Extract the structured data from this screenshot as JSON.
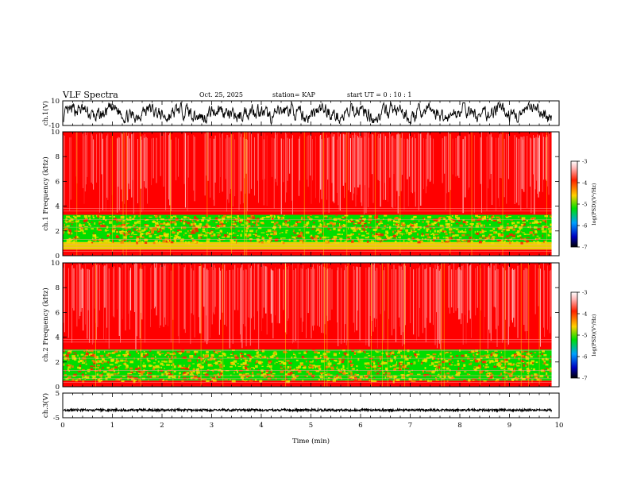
{
  "header": {
    "title": "VLF Spectra",
    "date": "Oct. 25, 2025",
    "station": "station= KAP",
    "start_ut": "start  UT =   0 : 10 : 1"
  },
  "colors": {
    "spec_low": "#001080",
    "spec_mid": "#00dd00",
    "spec_high": "#ff0000",
    "waveform": "#000000"
  },
  "chart_data": [
    {
      "type": "line",
      "name": "ch1-waveform",
      "ylabel": "ch.1(V)",
      "ylim": [
        -10,
        10
      ],
      "yticks": [
        "10",
        "-10"
      ],
      "xlim": [
        0,
        10
      ],
      "data_end_min": 9.85,
      "description": "dense noisy waveform, amplitude mostly between -8 and 8 V"
    },
    {
      "type": "heatmap",
      "name": "ch1-spectrogram",
      "ylabel": "ch.1 Frequency (kHz)",
      "ylim": [
        0,
        10
      ],
      "yticks": [
        "0",
        "2",
        "4",
        "6",
        "8",
        "10"
      ],
      "xlim": [
        0,
        10
      ],
      "data_end_min": 9.85,
      "bands": [
        {
          "from_khz": 0.0,
          "to_khz": 0.5,
          "level": "high"
        },
        {
          "from_khz": 0.5,
          "to_khz": 1.1,
          "level": "mixed"
        },
        {
          "from_khz": 1.1,
          "to_khz": 3.3,
          "level": "mid"
        },
        {
          "from_khz": 3.3,
          "to_khz": 10.0,
          "level": "high"
        }
      ],
      "colorbar": {
        "label": "log(PSD)(V²/Hz)",
        "range": [
          -7,
          -3
        ],
        "ticks": [
          "-3",
          "-4",
          "-5",
          "-6",
          "-7"
        ]
      }
    },
    {
      "type": "heatmap",
      "name": "ch2-spectrogram",
      "ylabel": "ch.2 Frequency (kHz)",
      "ylim": [
        0,
        10
      ],
      "yticks": [
        "0",
        "2",
        "4",
        "6",
        "8",
        "10"
      ],
      "xlim": [
        0,
        10
      ],
      "data_end_min": 9.85,
      "bands": [
        {
          "from_khz": 0.0,
          "to_khz": 0.5,
          "level": "high"
        },
        {
          "from_khz": 0.5,
          "to_khz": 3.0,
          "level": "mid"
        },
        {
          "from_khz": 3.0,
          "to_khz": 10.0,
          "level": "high"
        }
      ],
      "colorbar": {
        "label": "log(PSD)(V²/Hz)",
        "range": [
          -7,
          -3
        ],
        "ticks": [
          "-3",
          "-4",
          "-5",
          "-6",
          "-7"
        ]
      }
    },
    {
      "type": "line",
      "name": "ch3-waveform",
      "ylabel": "ch.3(V)",
      "ylim": [
        -5,
        5
      ],
      "yticks": [
        "5",
        "-5"
      ],
      "xlim": [
        0,
        10
      ],
      "data_end_min": 9.85,
      "level_v": -1.9,
      "description": "nearly constant trace near -2 V with small jitter"
    }
  ],
  "xaxis": {
    "label": "Time  (min)",
    "ticks": [
      "0",
      "1",
      "2",
      "3",
      "4",
      "5",
      "6",
      "7",
      "8",
      "9",
      "10"
    ]
  }
}
